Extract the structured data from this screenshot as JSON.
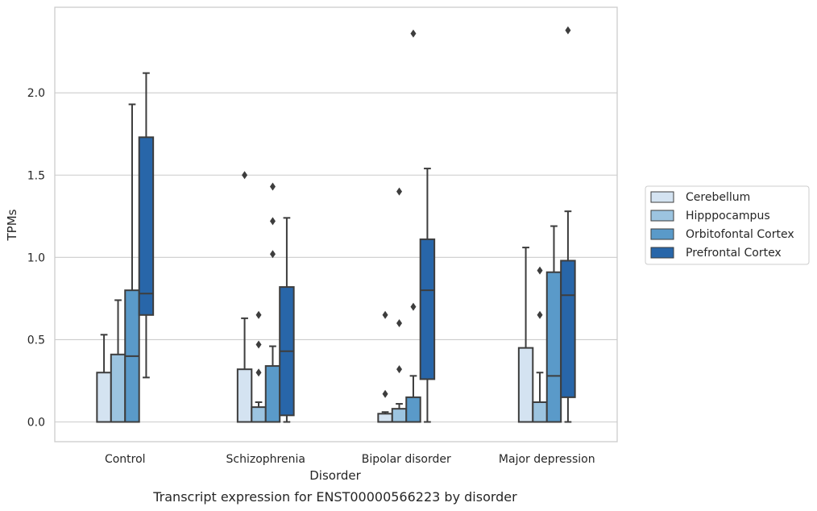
{
  "chart_data": {
    "type": "boxplot",
    "title": "",
    "caption": "Transcript expression for ENST00000566223 by disorder",
    "xlabel": "Disorder",
    "ylabel": "TPMs",
    "ylim": [
      -0.12,
      2.52
    ],
    "yticks": [
      0.0,
      0.5,
      1.0,
      1.5,
      2.0
    ],
    "ytick_labels": [
      "0.0",
      "0.5",
      "1.0",
      "1.5",
      "2.0"
    ],
    "grid": "horizontal",
    "legend_position": "right",
    "categories": [
      "Control",
      "Schizophrenia",
      "Bipolar disorder",
      "Major depression"
    ],
    "series": [
      {
        "name": "Cerebellum",
        "color": "#d4e3f1",
        "boxes": [
          {
            "whislo": 0.0,
            "q1": 0.0,
            "med": 0.0,
            "q3": 0.3,
            "whishi": 0.53,
            "fliers": []
          },
          {
            "whislo": 0.0,
            "q1": 0.0,
            "med": 0.0,
            "q3": 0.32,
            "whishi": 0.63,
            "fliers": [
              1.5
            ]
          },
          {
            "whislo": 0.0,
            "q1": 0.0,
            "med": 0.0,
            "q3": 0.05,
            "whishi": 0.06,
            "fliers": [
              0.65,
              0.17
            ]
          },
          {
            "whislo": 0.0,
            "q1": 0.0,
            "med": 0.0,
            "q3": 0.45,
            "whishi": 1.06,
            "fliers": []
          }
        ]
      },
      {
        "name": "Hipppocampus",
        "color": "#9cc4e0",
        "boxes": [
          {
            "whislo": 0.0,
            "q1": 0.0,
            "med": 0.0,
            "q3": 0.41,
            "whishi": 0.74,
            "fliers": []
          },
          {
            "whislo": 0.0,
            "q1": 0.0,
            "med": 0.0,
            "q3": 0.09,
            "whishi": 0.12,
            "fliers": [
              0.65,
              0.47,
              0.3
            ]
          },
          {
            "whislo": 0.0,
            "q1": 0.0,
            "med": 0.0,
            "q3": 0.08,
            "whishi": 0.11,
            "fliers": [
              1.4,
              0.6,
              0.32
            ]
          },
          {
            "whislo": 0.0,
            "q1": 0.0,
            "med": 0.0,
            "q3": 0.12,
            "whishi": 0.3,
            "fliers": [
              0.92,
              0.65
            ]
          }
        ]
      },
      {
        "name": "Orbitofontal Cortex",
        "color": "#5a9ac9",
        "boxes": [
          {
            "whislo": 0.0,
            "q1": 0.0,
            "med": 0.4,
            "q3": 0.8,
            "whishi": 1.93,
            "fliers": []
          },
          {
            "whislo": 0.0,
            "q1": 0.0,
            "med": 0.0,
            "q3": 0.34,
            "whishi": 0.46,
            "fliers": [
              1.43,
              1.22,
              1.02
            ]
          },
          {
            "whislo": 0.0,
            "q1": 0.0,
            "med": 0.0,
            "q3": 0.15,
            "whishi": 0.28,
            "fliers": [
              2.36,
              0.7
            ]
          },
          {
            "whislo": 0.0,
            "q1": 0.0,
            "med": 0.28,
            "q3": 0.91,
            "whishi": 1.19,
            "fliers": []
          }
        ]
      },
      {
        "name": "Prefrontal Cortex",
        "color": "#2866a9",
        "boxes": [
          {
            "whislo": 0.27,
            "q1": 0.65,
            "med": 0.78,
            "q3": 1.73,
            "whishi": 2.12,
            "fliers": []
          },
          {
            "whislo": 0.0,
            "q1": 0.04,
            "med": 0.43,
            "q3": 0.82,
            "whishi": 1.24,
            "fliers": []
          },
          {
            "whislo": 0.0,
            "q1": 0.26,
            "med": 0.8,
            "q3": 1.11,
            "whishi": 1.54,
            "fliers": []
          },
          {
            "whislo": 0.0,
            "q1": 0.15,
            "med": 0.77,
            "q3": 0.98,
            "whishi": 1.28,
            "fliers": [
              2.38
            ]
          }
        ]
      }
    ]
  }
}
